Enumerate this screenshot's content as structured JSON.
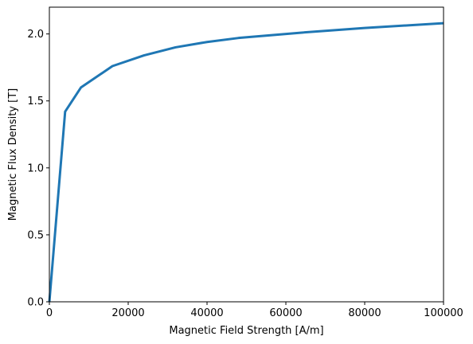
{
  "chart_data": {
    "type": "line",
    "title": "",
    "xlabel": "Magnetic Field Strength [A/m]",
    "ylabel": "Magnetic Flux Density [T]",
    "xlim": [
      0,
      100000
    ],
    "ylim": [
      0,
      2.2
    ],
    "grid": false,
    "x_ticks": [
      0,
      20000,
      40000,
      60000,
      80000,
      100000
    ],
    "x_tick_labels": [
      "0",
      "20000",
      "40000",
      "60000",
      "80000",
      "100000"
    ],
    "y_ticks": [
      0.0,
      0.5,
      1.0,
      1.5,
      2.0
    ],
    "y_tick_labels": [
      "0.0",
      "0.5",
      "1.0",
      "1.5",
      "2.0"
    ],
    "series": [
      {
        "color": "#1f77b4",
        "x": [
          0,
          4000,
          8000,
          16000,
          24000,
          32000,
          40000,
          48000,
          64000,
          80000,
          100000
        ],
        "y": [
          0.0,
          1.42,
          1.6,
          1.76,
          1.84,
          1.9,
          1.94,
          1.97,
          2.01,
          2.045,
          2.08
        ]
      }
    ]
  }
}
